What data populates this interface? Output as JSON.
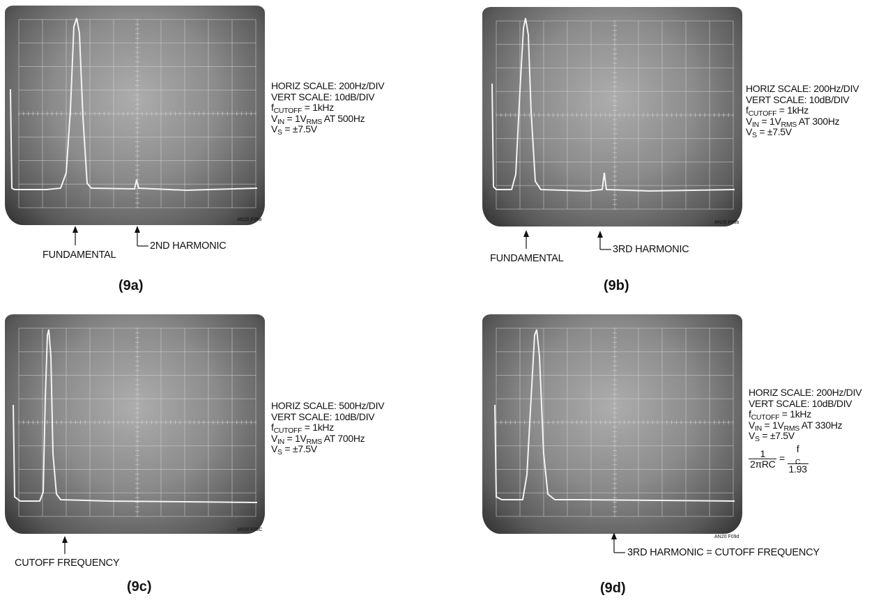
{
  "panels": [
    {
      "id": "9a",
      "caption": "(9a)",
      "figure_code": "AN20 F09a",
      "horiz_scale": "HORIZ SCALE: 200Hz/DIV",
      "vert_scale": "VERT SCALE: 10dB/DIV",
      "f_label": "f",
      "f_sub": "CUTOFF",
      "f_value": " = 1kHz",
      "vin_label": "V",
      "vin_sub": "IN",
      "vin_mid": " = 1V",
      "vin_sub2": "RMS",
      "vin_value": " AT 500Hz",
      "vs_label": "V",
      "vs_sub": "S",
      "vs_value": " = ±7.5V",
      "arrow1": "FUNDAMENTAL",
      "arrow2": "2ND HARMONIC"
    },
    {
      "id": "9b",
      "caption": "(9b)",
      "figure_code": "AN20 F09b",
      "horiz_scale": "HORIZ SCALE: 200Hz/DIV",
      "vert_scale": "VERT SCALE: 10dB/DIV",
      "f_label": "f",
      "f_sub": "CUTOFF",
      "f_value": " = 1kHz",
      "vin_label": "V",
      "vin_sub": "IN",
      "vin_mid": " = 1V",
      "vin_sub2": "RMS",
      "vin_value": " AT 300Hz",
      "vs_label": "V",
      "vs_sub": "S",
      "vs_value": " = ±7.5V",
      "arrow1": "FUNDAMENTAL",
      "arrow2": "3RD HARMONIC"
    },
    {
      "id": "9c",
      "caption": "(9c)",
      "figure_code": "AN20 F09C",
      "horiz_scale": "HORIZ SCALE: 500Hz/DIV",
      "vert_scale": "VERT SCALE: 10dB/DIV",
      "f_label": "f",
      "f_sub": "CUTOFF",
      "f_value": " = 1kHz",
      "vin_label": "V",
      "vin_sub": "IN",
      "vin_mid": " = 1V",
      "vin_sub2": "RMS",
      "vin_value": " AT 700Hz",
      "vs_label": "V",
      "vs_sub": "S",
      "vs_value": " = ±7.5V",
      "arrow1": "CUTOFF FREQUENCY"
    },
    {
      "id": "9d",
      "caption": "(9d)",
      "figure_code": "AN20 F09d",
      "horiz_scale": "HORIZ SCALE: 200Hz/DIV",
      "vert_scale": "VERT SCALE: 10dB/DIV",
      "f_label": "f",
      "f_sub": "CUTOFF",
      "f_value": " = 1kHz",
      "vin_label": "V",
      "vin_sub": "IN",
      "vin_mid": " = 1V",
      "vin_sub2": "RMS",
      "vin_value": " AT 330Hz",
      "vs_label": "V",
      "vs_sub": "S",
      "vs_value": " = ±7.5V",
      "formula_num": "1",
      "formula_den": "2πRC",
      "formula_eq": " = ",
      "formula_num2_label": "f",
      "formula_num2_sub": "C",
      "formula_den2": "1.93",
      "arrow1": "3RD HARMONIC = CUTOFF FREQUENCY"
    }
  ],
  "colors": {
    "screen_center": "#adadad",
    "screen_edge": "#2e2e2e",
    "trace": "#f4f4f4",
    "grid": "#d0d0d0",
    "ink": "#111111"
  }
}
